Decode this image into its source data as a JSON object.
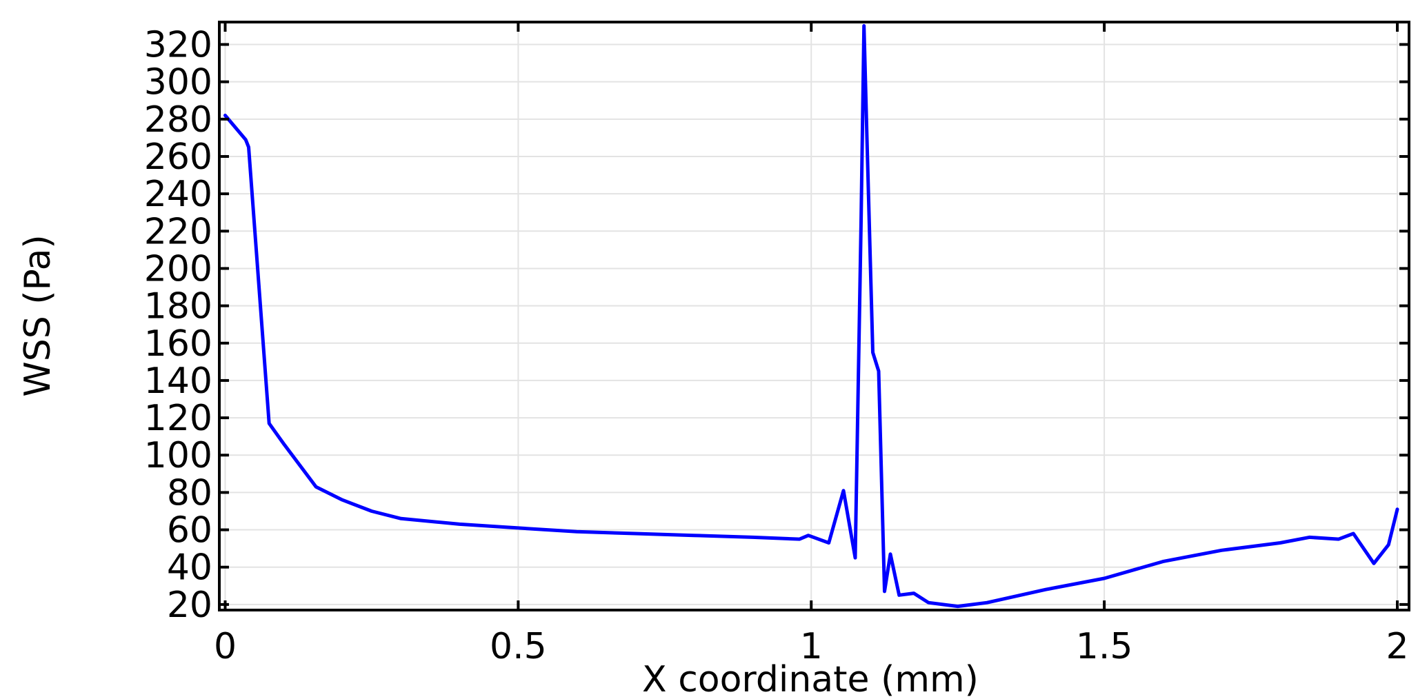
{
  "chart_data": {
    "type": "line",
    "title": "",
    "xlabel": "X coordinate (mm)",
    "ylabel": "WSS (Pa)",
    "xlim": [
      -0.01,
      2.02
    ],
    "ylim": [
      17,
      332
    ],
    "xticks": [
      0,
      0.5,
      1,
      1.5,
      2
    ],
    "xtick_labels": [
      "0",
      "0.5",
      "1",
      "1.5",
      "2"
    ],
    "yticks": [
      20,
      40,
      60,
      80,
      100,
      120,
      140,
      160,
      180,
      200,
      220,
      240,
      260,
      280,
      300,
      320
    ],
    "ytick_labels": [
      "20",
      "40",
      "60",
      "80",
      "100",
      "120",
      "140",
      "160",
      "180",
      "200",
      "220",
      "240",
      "260",
      "280",
      "300",
      "320"
    ],
    "grid": true,
    "legend": "none",
    "series": [
      {
        "color": "#0000ff",
        "x": [
          0,
          0.035,
          0.04,
          0.075,
          0.1,
          0.155,
          0.2,
          0.25,
          0.3,
          0.4,
          0.5,
          0.6,
          0.7,
          0.8,
          0.9,
          0.98,
          0.995,
          1.03,
          1.055,
          1.075,
          1.085,
          1.09,
          1.095,
          1.105,
          1.115,
          1.125,
          1.135,
          1.15,
          1.175,
          1.2,
          1.25,
          1.3,
          1.4,
          1.5,
          1.6,
          1.7,
          1.8,
          1.85,
          1.9,
          1.925,
          1.96,
          1.985,
          2
        ],
        "y": [
          282,
          269,
          265,
          117,
          106,
          83,
          76,
          70,
          66,
          63,
          61,
          59,
          58,
          57,
          56,
          55,
          57,
          53,
          81,
          45,
          225,
          330,
          270,
          155,
          145,
          27,
          47,
          25,
          26,
          21,
          19,
          21,
          28,
          34,
          43,
          49,
          53,
          56,
          55,
          58,
          42,
          52,
          71
        ]
      }
    ]
  }
}
